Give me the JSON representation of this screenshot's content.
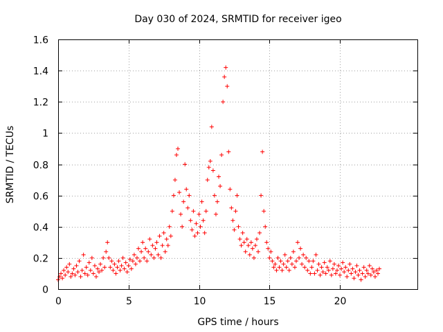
{
  "chart_data": {
    "type": "scatter",
    "title": "Day 030 of 2024, SRMTID for receiver igeo",
    "xlabel": "GPS time / hours",
    "ylabel": "SRMTID / TECUs",
    "xlim": [
      0,
      25.5
    ],
    "ylim": [
      0,
      1.6
    ],
    "x_ticks": [
      0,
      5,
      10,
      15,
      20
    ],
    "x_tick_labels": [
      "0",
      "5",
      "10",
      "15",
      "20"
    ],
    "y_ticks": [
      0,
      0.2,
      0.4,
      0.6,
      0.8,
      1.0,
      1.2,
      1.4,
      1.6
    ],
    "y_tick_labels": [
      "0",
      "0.2",
      "0.4",
      "0.6",
      "0.8",
      "1",
      "1.2",
      "1.4",
      "1.6"
    ],
    "grid": true,
    "marker": "+",
    "marker_color": "#ff0000",
    "series": [
      {
        "name": "SRMTID",
        "points": [
          [
            0.0,
            0.06
          ],
          [
            0.1,
            0.08
          ],
          [
            0.2,
            0.1
          ],
          [
            0.3,
            0.07
          ],
          [
            0.4,
            0.12
          ],
          [
            0.5,
            0.09
          ],
          [
            0.6,
            0.14
          ],
          [
            0.7,
            0.11
          ],
          [
            0.8,
            0.16
          ],
          [
            0.9,
            0.08
          ],
          [
            1.0,
            0.1
          ],
          [
            1.1,
            0.13
          ],
          [
            1.2,
            0.09
          ],
          [
            1.3,
            0.15
          ],
          [
            1.4,
            0.11
          ],
          [
            1.5,
            0.18
          ],
          [
            1.6,
            0.08
          ],
          [
            1.7,
            0.12
          ],
          [
            1.8,
            0.22
          ],
          [
            1.9,
            0.1
          ],
          [
            2.0,
            0.14
          ],
          [
            2.1,
            0.09
          ],
          [
            2.2,
            0.17
          ],
          [
            2.3,
            0.12
          ],
          [
            2.4,
            0.2
          ],
          [
            2.5,
            0.1
          ],
          [
            2.6,
            0.15
          ],
          [
            2.7,
            0.08
          ],
          [
            2.8,
            0.13
          ],
          [
            2.9,
            0.11
          ],
          [
            3.0,
            0.16
          ],
          [
            3.1,
            0.12
          ],
          [
            3.2,
            0.2
          ],
          [
            3.3,
            0.14
          ],
          [
            3.4,
            0.24
          ],
          [
            3.5,
            0.3
          ],
          [
            3.6,
            0.2
          ],
          [
            3.7,
            0.14
          ],
          [
            3.8,
            0.18
          ],
          [
            3.9,
            0.12
          ],
          [
            4.0,
            0.16
          ],
          [
            4.1,
            0.1
          ],
          [
            4.2,
            0.14
          ],
          [
            4.3,
            0.18
          ],
          [
            4.4,
            0.12
          ],
          [
            4.5,
            0.15
          ],
          [
            4.6,
            0.2
          ],
          [
            4.7,
            0.13
          ],
          [
            4.8,
            0.17
          ],
          [
            4.9,
            0.11
          ],
          [
            5.0,
            0.15
          ],
          [
            5.1,
            0.19
          ],
          [
            5.2,
            0.13
          ],
          [
            5.3,
            0.18
          ],
          [
            5.4,
            0.22
          ],
          [
            5.5,
            0.16
          ],
          [
            5.6,
            0.2
          ],
          [
            5.7,
            0.26
          ],
          [
            5.8,
            0.18
          ],
          [
            5.9,
            0.24
          ],
          [
            6.0,
            0.3
          ],
          [
            6.1,
            0.2
          ],
          [
            6.2,
            0.26
          ],
          [
            6.3,
            0.18
          ],
          [
            6.4,
            0.24
          ],
          [
            6.5,
            0.32
          ],
          [
            6.6,
            0.22
          ],
          [
            6.7,
            0.28
          ],
          [
            6.8,
            0.2
          ],
          [
            6.9,
            0.26
          ],
          [
            7.0,
            0.3
          ],
          [
            7.1,
            0.22
          ],
          [
            7.2,
            0.34
          ],
          [
            7.3,
            0.2
          ],
          [
            7.4,
            0.28
          ],
          [
            7.5,
            0.36
          ],
          [
            7.6,
            0.24
          ],
          [
            7.7,
            0.32
          ],
          [
            7.8,
            0.28
          ],
          [
            7.9,
            0.4
          ],
          [
            8.0,
            0.34
          ],
          [
            8.1,
            0.5
          ],
          [
            8.2,
            0.6
          ],
          [
            8.3,
            0.7
          ],
          [
            8.4,
            0.86
          ],
          [
            8.5,
            0.9
          ],
          [
            8.6,
            0.62
          ],
          [
            8.7,
            0.48
          ],
          [
            8.8,
            0.4
          ],
          [
            8.9,
            0.56
          ],
          [
            9.0,
            0.8
          ],
          [
            9.1,
            0.64
          ],
          [
            9.2,
            0.52
          ],
          [
            9.3,
            0.6
          ],
          [
            9.4,
            0.44
          ],
          [
            9.5,
            0.38
          ],
          [
            9.6,
            0.5
          ],
          [
            9.7,
            0.34
          ],
          [
            9.8,
            0.42
          ],
          [
            9.9,
            0.36
          ],
          [
            10.0,
            0.48
          ],
          [
            10.1,
            0.4
          ],
          [
            10.2,
            0.56
          ],
          [
            10.3,
            0.44
          ],
          [
            10.4,
            0.36
          ],
          [
            10.5,
            0.5
          ],
          [
            10.6,
            0.7
          ],
          [
            10.7,
            0.78
          ],
          [
            10.8,
            0.82
          ],
          [
            10.9,
            1.04
          ],
          [
            11.0,
            0.76
          ],
          [
            11.1,
            0.6
          ],
          [
            11.2,
            0.48
          ],
          [
            11.3,
            0.56
          ],
          [
            11.4,
            0.72
          ],
          [
            11.5,
            0.66
          ],
          [
            11.6,
            0.86
          ],
          [
            11.7,
            1.2
          ],
          [
            11.8,
            1.36
          ],
          [
            11.9,
            1.42
          ],
          [
            12.0,
            1.3
          ],
          [
            12.1,
            0.88
          ],
          [
            12.2,
            0.64
          ],
          [
            12.3,
            0.52
          ],
          [
            12.4,
            0.44
          ],
          [
            12.5,
            0.38
          ],
          [
            12.6,
            0.5
          ],
          [
            12.7,
            0.6
          ],
          [
            12.8,
            0.4
          ],
          [
            12.9,
            0.32
          ],
          [
            13.0,
            0.28
          ],
          [
            13.1,
            0.36
          ],
          [
            13.2,
            0.3
          ],
          [
            13.3,
            0.24
          ],
          [
            13.4,
            0.32
          ],
          [
            13.5,
            0.28
          ],
          [
            13.6,
            0.22
          ],
          [
            13.7,
            0.3
          ],
          [
            13.8,
            0.26
          ],
          [
            13.9,
            0.2
          ],
          [
            14.0,
            0.28
          ],
          [
            14.1,
            0.32
          ],
          [
            14.2,
            0.24
          ],
          [
            14.3,
            0.36
          ],
          [
            14.4,
            0.6
          ],
          [
            14.5,
            0.88
          ],
          [
            14.6,
            0.5
          ],
          [
            14.7,
            0.4
          ],
          [
            14.8,
            0.3
          ],
          [
            14.9,
            0.26
          ],
          [
            15.0,
            0.2
          ],
          [
            15.1,
            0.24
          ],
          [
            15.2,
            0.18
          ],
          [
            15.3,
            0.14
          ],
          [
            15.4,
            0.16
          ],
          [
            15.5,
            0.12
          ],
          [
            15.6,
            0.2
          ],
          [
            15.7,
            0.14
          ],
          [
            15.8,
            0.18
          ],
          [
            15.9,
            0.12
          ],
          [
            16.0,
            0.16
          ],
          [
            16.1,
            0.22
          ],
          [
            16.2,
            0.14
          ],
          [
            16.3,
            0.18
          ],
          [
            16.4,
            0.12
          ],
          [
            16.5,
            0.2
          ],
          [
            16.6,
            0.16
          ],
          [
            16.7,
            0.24
          ],
          [
            16.8,
            0.14
          ],
          [
            16.9,
            0.18
          ],
          [
            17.0,
            0.3
          ],
          [
            17.1,
            0.2
          ],
          [
            17.2,
            0.26
          ],
          [
            17.3,
            0.16
          ],
          [
            17.4,
            0.22
          ],
          [
            17.5,
            0.14
          ],
          [
            17.6,
            0.2
          ],
          [
            17.7,
            0.12
          ],
          [
            17.8,
            0.18
          ],
          [
            17.9,
            0.1
          ],
          [
            18.0,
            0.14
          ],
          [
            18.1,
            0.18
          ],
          [
            18.2,
            0.1
          ],
          [
            18.3,
            0.22
          ],
          [
            18.4,
            0.12
          ],
          [
            18.5,
            0.16
          ],
          [
            18.6,
            0.09
          ],
          [
            18.7,
            0.14
          ],
          [
            18.8,
            0.11
          ],
          [
            18.9,
            0.17
          ],
          [
            19.0,
            0.1
          ],
          [
            19.1,
            0.14
          ],
          [
            19.2,
            0.12
          ],
          [
            19.3,
            0.18
          ],
          [
            19.4,
            0.09
          ],
          [
            19.5,
            0.13
          ],
          [
            19.6,
            0.16
          ],
          [
            19.7,
            0.1
          ],
          [
            19.8,
            0.12
          ],
          [
            19.9,
            0.15
          ],
          [
            20.0,
            0.09
          ],
          [
            20.1,
            0.13
          ],
          [
            20.2,
            0.17
          ],
          [
            20.3,
            0.11
          ],
          [
            20.4,
            0.14
          ],
          [
            20.5,
            0.08
          ],
          [
            20.6,
            0.12
          ],
          [
            20.7,
            0.16
          ],
          [
            20.8,
            0.1
          ],
          [
            20.9,
            0.13
          ],
          [
            21.0,
            0.07
          ],
          [
            21.1,
            0.11
          ],
          [
            21.2,
            0.15
          ],
          [
            21.3,
            0.09
          ],
          [
            21.4,
            0.12
          ],
          [
            21.5,
            0.06
          ],
          [
            21.6,
            0.1
          ],
          [
            21.7,
            0.14
          ],
          [
            21.8,
            0.08
          ],
          [
            21.9,
            0.12
          ],
          [
            22.0,
            0.1
          ],
          [
            22.1,
            0.15
          ],
          [
            22.2,
            0.09
          ],
          [
            22.3,
            0.13
          ],
          [
            22.4,
            0.11
          ],
          [
            22.5,
            0.08
          ],
          [
            22.6,
            0.12
          ],
          [
            22.7,
            0.1
          ],
          [
            22.8,
            0.13
          ]
        ]
      }
    ]
  }
}
